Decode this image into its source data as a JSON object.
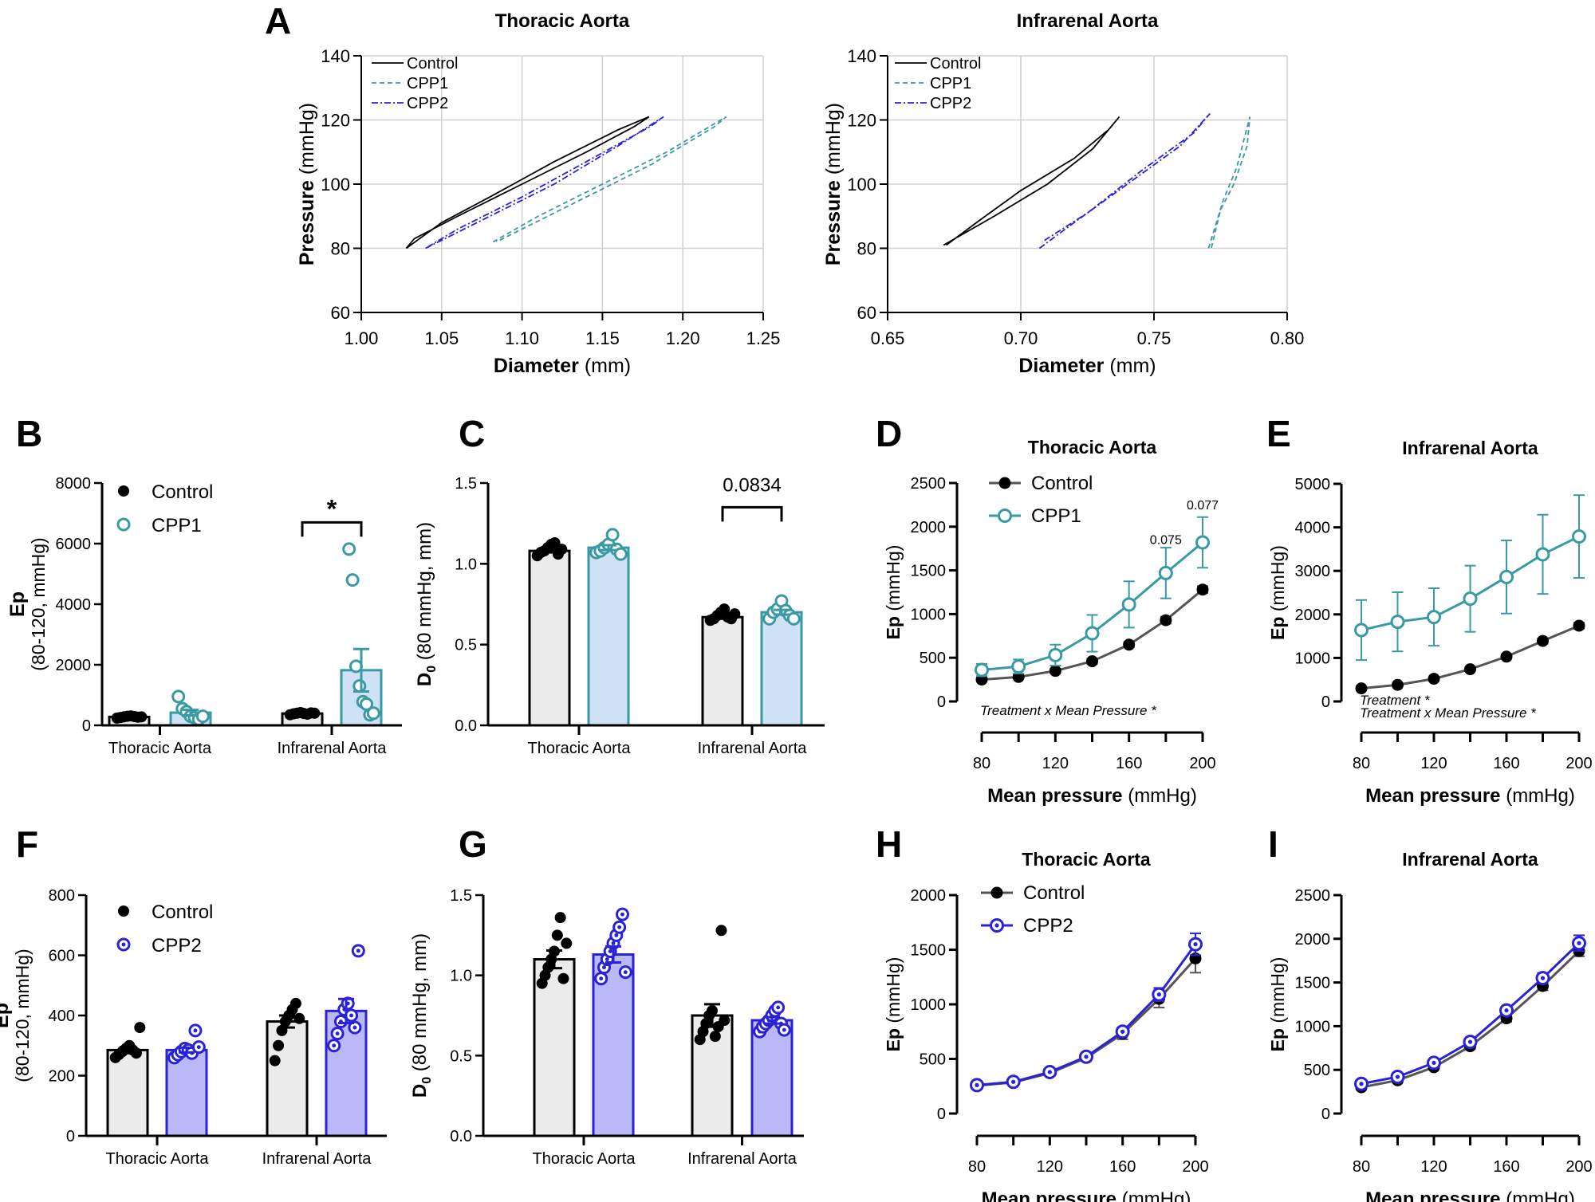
{
  "panel_letters": [
    "A",
    "B",
    "C",
    "D",
    "E",
    "F",
    "G",
    "H",
    "I"
  ],
  "chart_data": [
    {
      "panel": "A",
      "type": "line",
      "title": "Thoracic Aorta",
      "xlabel_bold": "Diameter",
      "xlabel_unit": " (mm)",
      "ylabel_bold": "Pressure",
      "ylabel_unit": " (mmHg)",
      "xlim": [
        1.0,
        1.25
      ],
      "ylim": [
        60,
        140
      ],
      "xticks": [
        "1.00",
        "1.05",
        "1.10",
        "1.15",
        "1.20",
        "1.25"
      ],
      "yticks": [
        "60",
        "80",
        "100",
        "120",
        "140"
      ],
      "grid": true,
      "legend": "top-left",
      "series": [
        {
          "name": "Control",
          "color": "#000000",
          "dash": "solid",
          "points": [
            [
              1.028,
              80
            ],
            [
              1.033,
              83
            ],
            [
              1.06,
              90
            ],
            [
              1.1,
              100
            ],
            [
              1.14,
              110
            ],
            [
              1.17,
              118
            ],
            [
              1.179,
              121
            ],
            [
              1.16,
              117
            ],
            [
              1.12,
              107
            ],
            [
              1.08,
              96
            ],
            [
              1.05,
              88
            ],
            [
              1.028,
              80
            ]
          ]
        },
        {
          "name": "CPP1",
          "color": "#3a9aa3",
          "dash": "dashed",
          "points": [
            [
              1.082,
              82
            ],
            [
              1.11,
              90
            ],
            [
              1.15,
              100
            ],
            [
              1.19,
              110
            ],
            [
              1.227,
              121
            ],
            [
              1.22,
              118
            ],
            [
              1.18,
              106
            ],
            [
              1.14,
              96
            ],
            [
              1.1,
              86
            ],
            [
              1.084,
              82
            ]
          ]
        },
        {
          "name": "CPP2",
          "color": "#2a22d6",
          "dash": "dashdot",
          "points": [
            [
              1.04,
              80
            ],
            [
              1.08,
              90
            ],
            [
              1.12,
              100
            ],
            [
              1.16,
              112
            ],
            [
              1.188,
              121
            ],
            [
              1.18,
              118
            ],
            [
              1.14,
              107
            ],
            [
              1.1,
              96
            ],
            [
              1.06,
              86
            ],
            [
              1.04,
              80
            ]
          ]
        }
      ]
    },
    {
      "panel": "A",
      "type": "line",
      "title": "Infrarenal Aorta",
      "xlabel_bold": "Diameter",
      "xlabel_unit": " (mm)",
      "ylabel_bold": "Pressure",
      "ylabel_unit": " (mmHg)",
      "xlim": [
        0.65,
        0.8
      ],
      "ylim": [
        60,
        140
      ],
      "xticks": [
        "0.65",
        "0.70",
        "0.75",
        "0.80"
      ],
      "yticks": [
        "60",
        "80",
        "100",
        "120",
        "140"
      ],
      "grid": true,
      "legend": "top-left",
      "series": [
        {
          "name": "Control",
          "color": "#000000",
          "dash": "solid",
          "points": [
            [
              0.671,
              81
            ],
            [
              0.69,
              90
            ],
            [
              0.71,
              100
            ],
            [
              0.727,
              111
            ],
            [
              0.737,
              121
            ],
            [
              0.733,
              117
            ],
            [
              0.72,
              108
            ],
            [
              0.7,
              98
            ],
            [
              0.685,
              89
            ],
            [
              0.672,
              81
            ]
          ]
        },
        {
          "name": "CPP1",
          "color": "#3a9aa3",
          "dash": "dashed",
          "points": [
            [
              0.7705,
              80
            ],
            [
              0.776,
              95
            ],
            [
              0.781,
              105
            ],
            [
              0.786,
              121
            ],
            [
              0.785,
              112
            ],
            [
              0.78,
              100
            ],
            [
              0.775,
              92
            ],
            [
              0.7715,
              80
            ]
          ]
        },
        {
          "name": "CPP2",
          "color": "#2a22d6",
          "dash": "dashdot",
          "points": [
            [
              0.707,
              80
            ],
            [
              0.72,
              88
            ],
            [
              0.74,
              100
            ],
            [
              0.76,
              112
            ],
            [
              0.771,
              122
            ],
            [
              0.765,
              116
            ],
            [
              0.745,
              104
            ],
            [
              0.725,
              91
            ],
            [
              0.708,
              82
            ]
          ]
        }
      ]
    },
    {
      "panel": "B",
      "type": "bar",
      "categories": [
        "Thoracic Aorta",
        "Infrarenal Aorta"
      ],
      "ylabel_bold": "Ep",
      "ylabel_line2": "(80-120, mmHg)",
      "ylim": [
        0,
        8000
      ],
      "yticks": [
        "0",
        "2000",
        "4000",
        "6000",
        "8000"
      ],
      "legend": "top-left",
      "series": [
        {
          "name": "Control",
          "color": "#000000",
          "fill": "#ebebeb",
          "marker": "filled",
          "values": [
            280,
            390
          ],
          "sem": [
            15,
            20
          ],
          "points": [
            [
              240,
              260,
              280,
              300,
              310,
              290,
              270,
              280
            ],
            [
              350,
              380,
              400,
              420,
              390,
              370,
              410,
              400
            ]
          ]
        },
        {
          "name": "CPP1",
          "color": "#3a9aa3",
          "fill": "#cfe2f5",
          "marker": "open",
          "values": [
            420,
            1820
          ],
          "sem": [
            90,
            700
          ],
          "points": [
            [
              950,
              550,
              450,
              300,
              250,
              200,
              300
            ],
            [
              5820,
              4800,
              1950,
              1300,
              780,
              700,
              350,
              400
            ]
          ]
        }
      ],
      "annotations": [
        {
          "category": 1,
          "text": "*",
          "y": 6700
        }
      ]
    },
    {
      "panel": "C",
      "type": "bar",
      "categories": [
        "Thoracic Aorta",
        "Infrarenal Aorta"
      ],
      "ylabel_main": "D",
      "ylabel_sub": "0",
      "ylabel_rest": " (80 mmHg, mm)",
      "ylim": [
        0,
        1.5
      ],
      "yticks": [
        "0.0",
        "0.5",
        "1.0",
        "1.5"
      ],
      "series": [
        {
          "name": "Control",
          "color": "#000000",
          "fill": "#ebebeb",
          "marker": "filled",
          "values": [
            1.08,
            0.67
          ],
          "sem": [
            0.01,
            0.01
          ],
          "points": [
            [
              1.05,
              1.07,
              1.08,
              1.1,
              1.12,
              1.13,
              1.06,
              1.09
            ],
            [
              0.65,
              0.66,
              0.68,
              0.7,
              0.72,
              0.67,
              0.66,
              0.69
            ]
          ]
        },
        {
          "name": "CPP1",
          "color": "#3a9aa3",
          "fill": "#cfe2f5",
          "marker": "open",
          "values": [
            1.1,
            0.7
          ],
          "sem": [
            0.015,
            0.015
          ],
          "points": [
            [
              1.07,
              1.08,
              1.1,
              1.12,
              1.18,
              1.09,
              1.06
            ],
            [
              0.66,
              0.7,
              0.72,
              0.77,
              0.71,
              0.68,
              0.66
            ]
          ]
        }
      ],
      "annotations": [
        {
          "category": 1,
          "text": "0.0834",
          "y": 1.35
        }
      ]
    },
    {
      "panel": "D",
      "type": "line",
      "title": "Thoracic Aorta",
      "xlabel_bold": "Mean pressure",
      "xlabel_unit": " (mmHg)",
      "ylabel_bold": "Ep",
      "ylabel_unit": " (mmHg)",
      "x": [
        80,
        100,
        120,
        140,
        160,
        180,
        200
      ],
      "xticks": [
        "80",
        "120",
        "160",
        "200"
      ],
      "ylim": [
        0,
        2500
      ],
      "yticks": [
        "0",
        "500",
        "1000",
        "1500",
        "2000",
        "2500"
      ],
      "legend": "top-left",
      "series": [
        {
          "name": "Control",
          "color": "#555555",
          "marker": "filled",
          "values": [
            250,
            280,
            350,
            460,
            650,
            930,
            1280
          ],
          "sem": [
            20,
            20,
            25,
            30,
            30,
            40,
            40
          ]
        },
        {
          "name": "CPP1",
          "color": "#3a9aa3",
          "marker": "open",
          "values": [
            360,
            400,
            530,
            780,
            1110,
            1470,
            1820
          ],
          "sem": [
            70,
            80,
            120,
            210,
            265,
            290,
            290
          ]
        }
      ],
      "annotations": [
        {
          "x": 180,
          "text": "0.075",
          "y": 1800
        },
        {
          "x": 200,
          "text": "0.077",
          "y": 2200
        }
      ],
      "notes": [
        "Treatment x Mean Pressure *"
      ]
    },
    {
      "panel": "E",
      "type": "line",
      "title": "Infrarenal Aorta",
      "xlabel_bold": "Mean pressure",
      "xlabel_unit": " (mmHg)",
      "ylabel_bold": "Ep",
      "ylabel_unit": " (mmHg)",
      "x": [
        80,
        100,
        120,
        140,
        160,
        180,
        200
      ],
      "xticks": [
        "80",
        "120",
        "160",
        "200"
      ],
      "ylim": [
        0,
        5000
      ],
      "yticks": [
        "0",
        "1000",
        "2000",
        "3000",
        "4000",
        "5000"
      ],
      "series": [
        {
          "name": "Control",
          "color": "#555555",
          "marker": "filled",
          "values": [
            300,
            380,
            520,
            740,
            1030,
            1390,
            1740
          ],
          "sem": [
            20,
            25,
            30,
            40,
            50,
            60,
            70
          ]
        },
        {
          "name": "CPP1",
          "color": "#3a9aa3",
          "marker": "open",
          "values": [
            1640,
            1830,
            1940,
            2360,
            2860,
            3380,
            3790
          ],
          "sem": [
            690,
            680,
            660,
            760,
            840,
            910,
            950
          ]
        }
      ],
      "annotations": [],
      "notes": [
        "Treatment *",
        "Treatment x Mean Pressure *"
      ]
    },
    {
      "panel": "F",
      "type": "bar",
      "categories": [
        "Thoracic Aorta",
        "Infrarenal Aorta"
      ],
      "ylabel_bold": "Ep",
      "ylabel_line2": "(80-120, mmHg)",
      "ylim": [
        0,
        800
      ],
      "yticks": [
        "0",
        "200",
        "400",
        "600",
        "800"
      ],
      "legend": "top-left",
      "series": [
        {
          "name": "Control",
          "color": "#000000",
          "fill": "#ebebeb",
          "marker": "filled",
          "values": [
            285,
            380
          ],
          "sem": [
            10,
            20
          ],
          "points": [
            [
              260,
              270,
              280,
              290,
              300,
              285,
              275,
              360
            ],
            [
              250,
              300,
              350,
              380,
              400,
              420,
              440,
              390
            ]
          ]
        },
        {
          "name": "CPP2",
          "color": "#2a22d6",
          "fill": "#b9b9f7",
          "marker": "dotted",
          "values": [
            285,
            415
          ],
          "sem": [
            8,
            40
          ],
          "points": [
            [
              260,
              270,
              280,
              290,
              285,
              275,
              350,
              295
            ],
            [
              300,
              340,
              380,
              420,
              440,
              400,
              360,
              615
            ]
          ]
        }
      ],
      "annotations": []
    },
    {
      "panel": "G",
      "type": "bar",
      "categories": [
        "Thoracic Aorta",
        "Infrarenal Aorta"
      ],
      "ylabel_main": "D",
      "ylabel_sub": "0",
      "ylabel_rest": " (80 mmHg, mm)",
      "ylim": [
        0,
        1.5
      ],
      "yticks": [
        "0.0",
        "0.5",
        "1.0",
        "1.5"
      ],
      "series": [
        {
          "name": "Control",
          "color": "#000000",
          "fill": "#ebebeb",
          "marker": "filled",
          "values": [
            1.1,
            0.75
          ],
          "sem": [
            0.055,
            0.07
          ],
          "points": [
            [
              0.95,
              1.0,
              1.05,
              1.1,
              1.15,
              1.25,
              1.36,
              0.98,
              1.2
            ],
            [
              0.6,
              0.65,
              0.7,
              0.75,
              0.78,
              0.62,
              0.68,
              1.28,
              0.72
            ]
          ]
        },
        {
          "name": "CPP2",
          "color": "#2a22d6",
          "fill": "#b9b9f7",
          "marker": "dotted",
          "values": [
            1.13,
            0.72
          ],
          "sem": [
            0.05,
            0.02
          ],
          "points": [
            [
              0.98,
              1.05,
              1.1,
              1.15,
              1.2,
              1.25,
              1.3,
              1.38,
              1.02
            ],
            [
              0.65,
              0.68,
              0.7,
              0.72,
              0.75,
              0.78,
              0.8,
              0.7,
              0.66
            ]
          ]
        }
      ],
      "annotations": []
    },
    {
      "panel": "H",
      "type": "line",
      "title": "Thoracic Aorta",
      "xlabel_bold": "Mean pressure",
      "xlabel_unit": " (mmHg)",
      "ylabel_bold": "Ep",
      "ylabel_unit": " (mmHg)",
      "x": [
        80,
        100,
        120,
        140,
        160,
        180,
        200
      ],
      "xticks": [
        "80",
        "120",
        "160",
        "200"
      ],
      "ylim": [
        0,
        2000
      ],
      "yticks": [
        "0",
        "500",
        "1000",
        "1500",
        "2000"
      ],
      "legend": "top-left",
      "series": [
        {
          "name": "Control",
          "color": "#555555",
          "marker": "filled",
          "values": [
            255,
            285,
            370,
            510,
            730,
            1050,
            1420
          ],
          "sem": [
            10,
            15,
            20,
            30,
            50,
            80,
            130
          ]
        },
        {
          "name": "CPP2",
          "color": "#2a22d6",
          "marker": "dotted",
          "values": [
            260,
            290,
            380,
            520,
            750,
            1090,
            1550
          ],
          "sem": [
            10,
            15,
            20,
            30,
            40,
            60,
            100
          ]
        }
      ],
      "annotations": [],
      "notes": []
    },
    {
      "panel": "I",
      "type": "line",
      "title": "Infrarenal Aorta",
      "xlabel_bold": "Mean pressure",
      "xlabel_unit": " (mmHg)",
      "ylabel_bold": "Ep",
      "ylabel_unit": " (mmHg)",
      "x": [
        80,
        100,
        120,
        140,
        160,
        180,
        200
      ],
      "xticks": [
        "80",
        "120",
        "160",
        "200"
      ],
      "ylim": [
        0,
        2500
      ],
      "yticks": [
        "0",
        "500",
        "1000",
        "1500",
        "2000",
        "2500"
      ],
      "series": [
        {
          "name": "Control",
          "color": "#555555",
          "marker": "filled",
          "values": [
            300,
            380,
            530,
            770,
            1090,
            1460,
            1860
          ],
          "sem": [
            15,
            20,
            25,
            30,
            40,
            50,
            60
          ]
        },
        {
          "name": "CPP2",
          "color": "#2a22d6",
          "marker": "dotted",
          "values": [
            340,
            420,
            580,
            820,
            1180,
            1550,
            1950
          ],
          "sem": [
            15,
            20,
            25,
            30,
            40,
            60,
            90
          ]
        }
      ],
      "annotations": [],
      "notes": []
    }
  ]
}
